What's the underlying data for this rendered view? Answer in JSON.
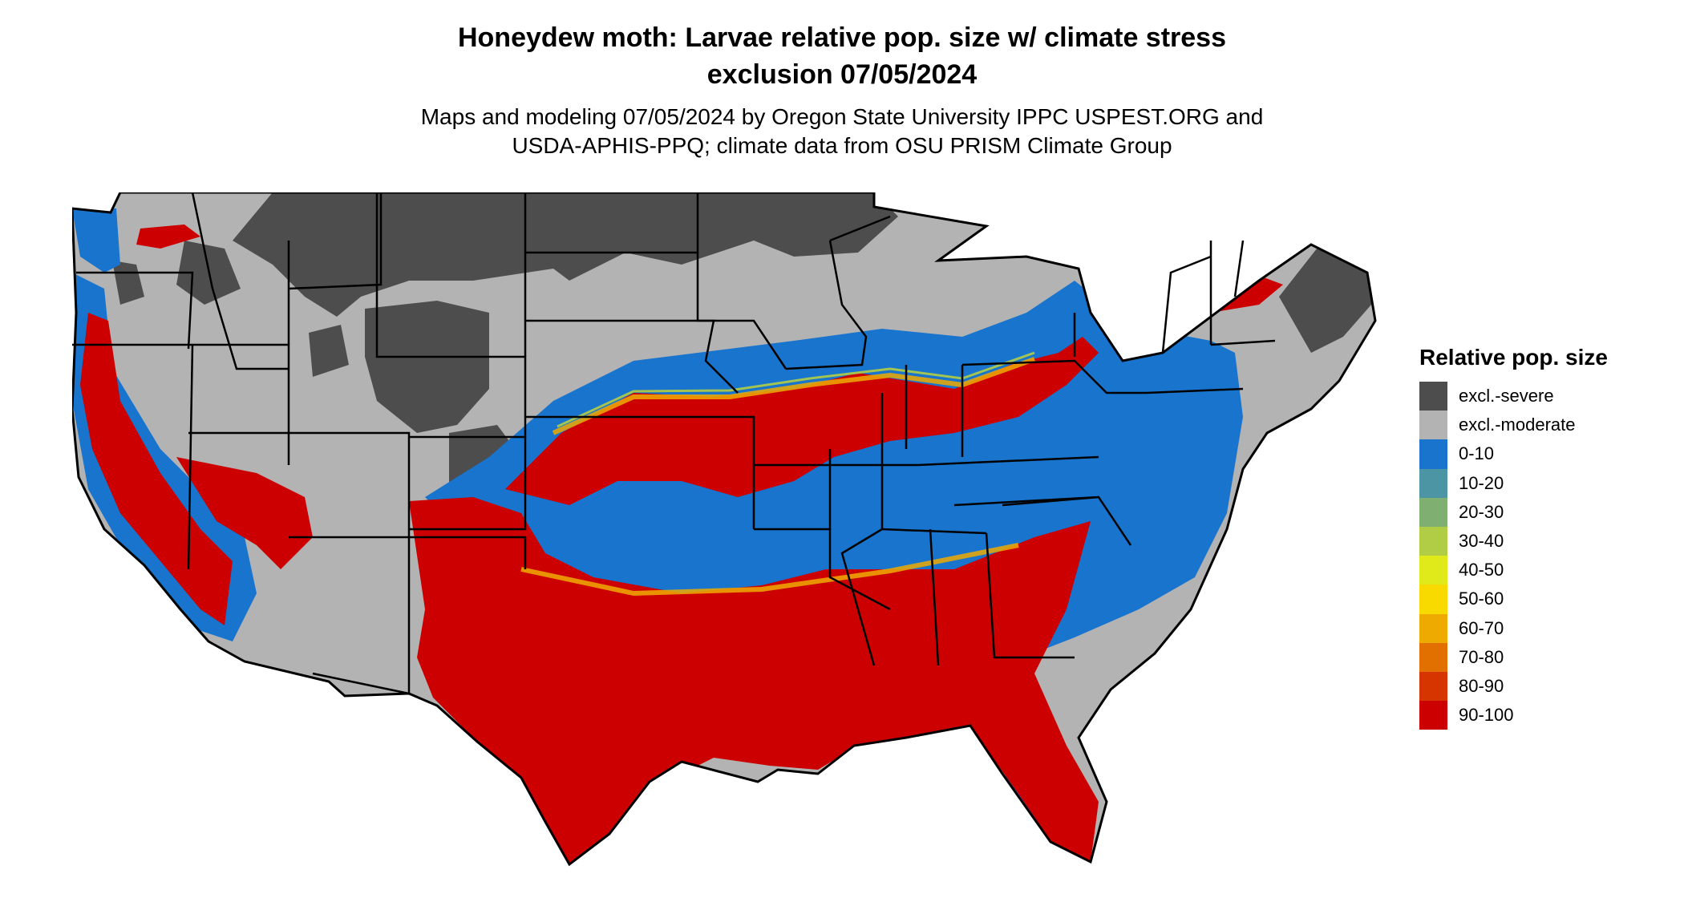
{
  "title": {
    "line1": "Honeydew moth: Larvae relative pop. size w/ climate stress",
    "line2": "exclusion 07/05/2024"
  },
  "subtitle": {
    "line1": "Maps and modeling 07/05/2024 by Oregon State University IPPC USPEST.ORG and",
    "line2": "USDA-APHIS-PPQ; climate data from OSU PRISM Climate Group"
  },
  "legend": {
    "title": "Relative pop. size",
    "items": [
      {
        "label": "excl.-severe",
        "color": "#4d4d4d"
      },
      {
        "label": "excl.-moderate",
        "color": "#b3b3b3"
      },
      {
        "label": "0-10",
        "color": "#1874cd"
      },
      {
        "label": "10-20",
        "color": "#4b95a5"
      },
      {
        "label": "20-30",
        "color": "#7fb071"
      },
      {
        "label": "30-40",
        "color": "#b1cd45"
      },
      {
        "label": "40-50",
        "color": "#e0e91a"
      },
      {
        "label": "50-60",
        "color": "#f8d900"
      },
      {
        "label": "60-70",
        "color": "#efaa00"
      },
      {
        "label": "70-80",
        "color": "#e27000"
      },
      {
        "label": "80-90",
        "color": "#d73500"
      },
      {
        "label": "90-100",
        "color": "#cc0000"
      }
    ]
  }
}
